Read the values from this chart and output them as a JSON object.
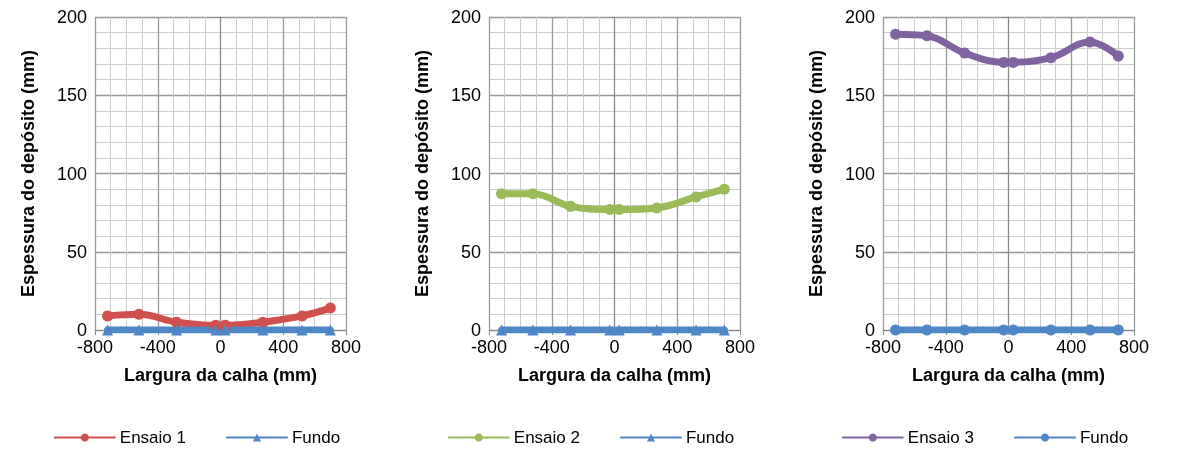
{
  "chart_data": [
    {
      "type": "line",
      "xlabel": "Largura da calha (mm)",
      "ylabel": "Espessura do depósito (mm)",
      "xlim": [
        -800,
        800
      ],
      "xticks": [
        -800,
        -400,
        0,
        400,
        800
      ],
      "ylim": [
        0,
        200
      ],
      "yticks": [
        0,
        50,
        100,
        150,
        200
      ],
      "grid": true,
      "legend": "bottom",
      "x": [
        -720,
        -520,
        -280,
        -30,
        30,
        270,
        520,
        700
      ],
      "series": [
        {
          "name": "Ensaio 1",
          "color": "#d0504d",
          "marker": "circle",
          "values": [
            9,
            10,
            5,
            3,
            3,
            5,
            9,
            14
          ]
        },
        {
          "name": "Fundo",
          "color": "#4f86c6",
          "marker": "triangle",
          "values": [
            0,
            0,
            0,
            0,
            0,
            0,
            0,
            0
          ]
        }
      ]
    },
    {
      "type": "line",
      "xlabel": "Largura da calha (mm)",
      "ylabel": "Espessura do depósito (mm)",
      "xlim": [
        -800,
        800
      ],
      "xticks": [
        -800,
        -400,
        0,
        400,
        800
      ],
      "ylim": [
        0,
        200
      ],
      "yticks": [
        0,
        50,
        100,
        150,
        200
      ],
      "grid": true,
      "legend": "bottom",
      "x": [
        -720,
        -520,
        -280,
        -30,
        30,
        270,
        520,
        700
      ],
      "series": [
        {
          "name": "Ensaio 2",
          "color": "#9bbb59",
          "marker": "circle",
          "values": [
            87,
            87,
            79,
            77,
            77,
            78,
            85,
            90
          ]
        },
        {
          "name": "Fundo",
          "color": "#4f86c6",
          "marker": "triangle",
          "values": [
            0,
            0,
            0,
            0,
            0,
            0,
            0,
            0
          ]
        }
      ]
    },
    {
      "type": "line",
      "xlabel": "Largura da calha (mm)",
      "ylabel": "Espessura do depósito (mm)",
      "xlim": [
        -800,
        800
      ],
      "xticks": [
        -800,
        -400,
        0,
        400,
        800
      ],
      "ylim": [
        0,
        200
      ],
      "yticks": [
        0,
        50,
        100,
        150,
        200
      ],
      "grid": true,
      "legend": "bottom",
      "x": [
        -720,
        -520,
        -280,
        -30,
        30,
        270,
        520,
        700
      ],
      "series": [
        {
          "name": "Ensaio 3",
          "color": "#8064a2",
          "marker": "circle",
          "values": [
            189,
            188,
            177,
            171,
            171,
            174,
            184,
            175
          ]
        },
        {
          "name": "Fundo",
          "color": "#4f86c6",
          "marker": "circle",
          "values": [
            0,
            0,
            0,
            0,
            0,
            0,
            0,
            0
          ]
        }
      ]
    }
  ]
}
